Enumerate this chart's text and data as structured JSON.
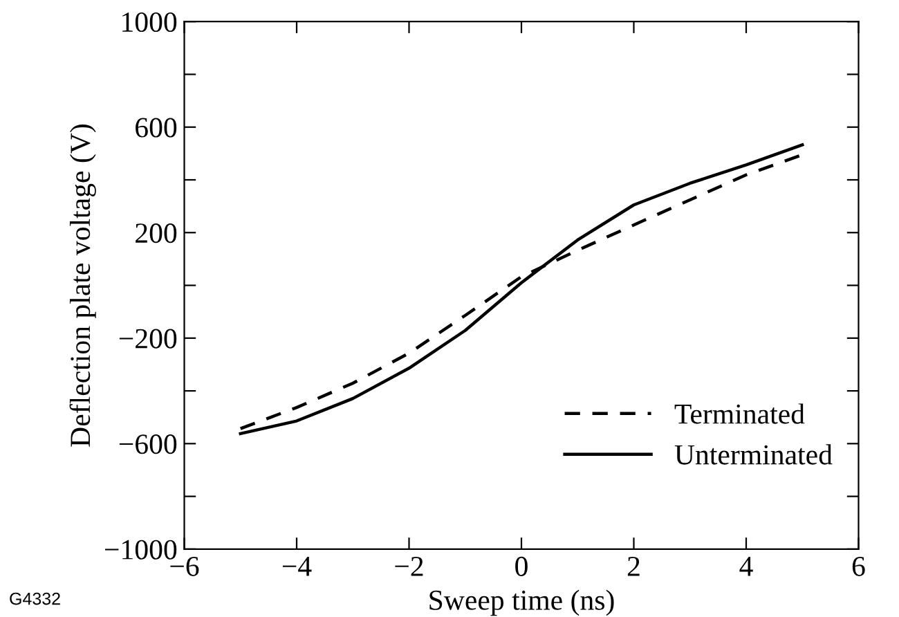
{
  "chart_data": {
    "type": "line",
    "xlabel": "Sweep time (ns)",
    "ylabel": "Deflection plate voltage (V)",
    "x": [
      -5,
      -4,
      -3,
      -2,
      -1,
      0,
      1,
      2,
      3,
      4,
      5
    ],
    "series": [
      {
        "name": "Terminated",
        "color": "#000000",
        "line_style": "dashed",
        "values": [
          -543,
          -463,
          -371,
          -257,
          -114,
          33,
          133,
          229,
          324,
          419,
          495
        ]
      },
      {
        "name": "Unterminated",
        "color": "#000000",
        "line_style": "solid",
        "values": [
          -562,
          -514,
          -429,
          -314,
          -171,
          10,
          172,
          305,
          387,
          457,
          533
        ]
      }
    ],
    "xlim": [
      -6,
      6
    ],
    "xticks": [
      -6,
      -4,
      -2,
      0,
      2,
      4,
      6
    ],
    "ylim": [
      -1000,
      1000
    ],
    "yticks": [
      {
        "value": -1000,
        "label": "−1000"
      },
      {
        "value": -800,
        "label": null
      },
      {
        "value": -600,
        "label": "−600"
      },
      {
        "value": -400,
        "label": null
      },
      {
        "value": -200,
        "label": "−200"
      },
      {
        "value": 0,
        "label": null
      },
      200,
      {
        "value": 400,
        "label": null
      },
      600,
      {
        "value": 800,
        "label": null
      },
      1000
    ],
    "legend": "bottom right",
    "grid": false,
    "marker": "none",
    "annotations": [
      "G4332"
    ]
  }
}
